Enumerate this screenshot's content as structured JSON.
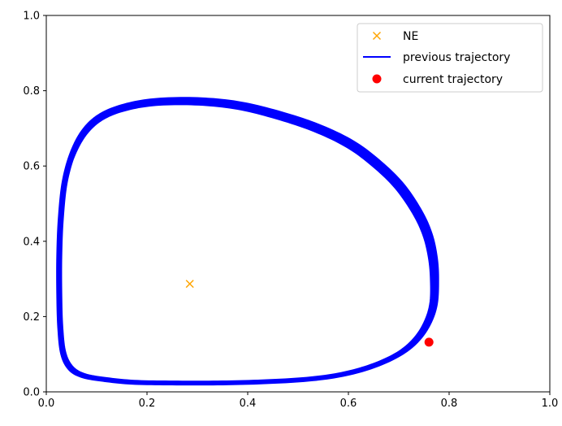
{
  "chart_data": {
    "type": "line",
    "title": "",
    "xlabel": "",
    "ylabel": "",
    "xlim": [
      0,
      1
    ],
    "ylim": [
      0,
      1
    ],
    "xticks": [
      "0.0",
      "0.2",
      "0.4",
      "0.6",
      "0.8",
      "1.0"
    ],
    "yticks": [
      "0.0",
      "0.2",
      "0.4",
      "0.6",
      "0.8",
      "1.0"
    ],
    "grid": false,
    "legend_position": "top-right",
    "series": [
      {
        "name": "NE",
        "kind": "marker-x",
        "color": "#ffa500",
        "points": [
          [
            0.285,
            0.287
          ]
        ]
      },
      {
        "name": "previous trajectory",
        "kind": "line",
        "color": "#0000ff",
        "cycle": [
          [
            0.775,
            0.23
          ],
          [
            0.778,
            0.3
          ],
          [
            0.775,
            0.36
          ],
          [
            0.765,
            0.42
          ],
          [
            0.745,
            0.48
          ],
          [
            0.71,
            0.55
          ],
          [
            0.665,
            0.61
          ],
          [
            0.61,
            0.665
          ],
          [
            0.54,
            0.71
          ],
          [
            0.46,
            0.745
          ],
          [
            0.38,
            0.77
          ],
          [
            0.3,
            0.78
          ],
          [
            0.22,
            0.778
          ],
          [
            0.16,
            0.765
          ],
          [
            0.11,
            0.74
          ],
          [
            0.075,
            0.7
          ],
          [
            0.05,
            0.64
          ],
          [
            0.033,
            0.56
          ],
          [
            0.025,
            0.46
          ],
          [
            0.022,
            0.36
          ],
          [
            0.022,
            0.26
          ],
          [
            0.024,
            0.17
          ],
          [
            0.03,
            0.1
          ],
          [
            0.045,
            0.06
          ],
          [
            0.07,
            0.04
          ],
          [
            0.11,
            0.03
          ],
          [
            0.17,
            0.022
          ],
          [
            0.25,
            0.02
          ],
          [
            0.34,
            0.02
          ],
          [
            0.43,
            0.023
          ],
          [
            0.52,
            0.03
          ],
          [
            0.59,
            0.043
          ],
          [
            0.65,
            0.065
          ],
          [
            0.7,
            0.095
          ],
          [
            0.735,
            0.13
          ],
          [
            0.76,
            0.175
          ]
        ]
      },
      {
        "name": "current trajectory",
        "kind": "marker-circle",
        "color": "#ff0000",
        "points": [
          [
            0.76,
            0.132
          ]
        ]
      }
    ]
  }
}
